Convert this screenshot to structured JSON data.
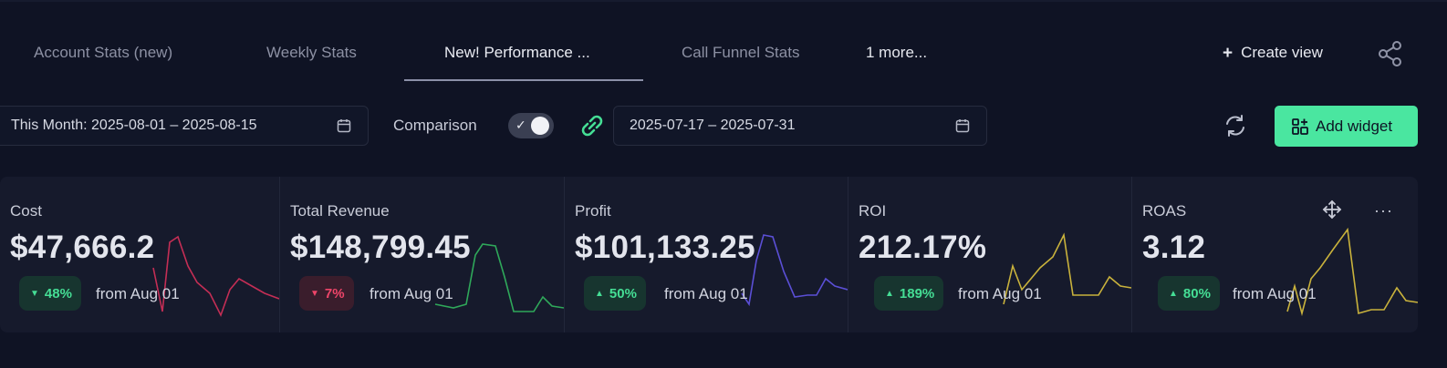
{
  "tabs": [
    {
      "label": "Account Stats (new)",
      "active": false
    },
    {
      "label": "Weekly Stats",
      "active": false
    },
    {
      "label": "New! Performance ...",
      "active": true
    },
    {
      "label": "Call Funnel Stats",
      "active": false
    }
  ],
  "more_tabs": "1 more...",
  "toolbar": {
    "create_view_label": "Create view",
    "create_view_icon": "plus-icon",
    "share_icon": "share-icon"
  },
  "filters": {
    "date_range": "This Month: 2025-08-01 – 2025-08-15",
    "comparison_label": "Comparison",
    "comparison_enabled": true,
    "comparison_range": "2025-07-17 – 2025-07-31",
    "add_widget_label": "Add widget"
  },
  "colors": {
    "accent": "#4ae6a0",
    "background": "#0f1324",
    "card_background": "#161a2c",
    "up": "#45de95",
    "down": "#ef4569"
  },
  "metrics": [
    {
      "label": "Cost",
      "value": "$47,666.2",
      "change": "48%",
      "direction": "down",
      "badge_tone": "up",
      "comparison": "from Aug 01",
      "spark_color": "#c42e55"
    },
    {
      "label": "Total Revenue",
      "value": "$148,799.45",
      "change": "7%",
      "direction": "down",
      "badge_tone": "down",
      "comparison": "from Aug 01",
      "spark_color": "#2fa85a"
    },
    {
      "label": "Profit",
      "value": "$101,133.25",
      "change": "50%",
      "direction": "up",
      "badge_tone": "up",
      "comparison": "from Aug 01",
      "spark_color": "#5b4fd6"
    },
    {
      "label": "ROI",
      "value": "212.17%",
      "change": "189%",
      "direction": "up",
      "badge_tone": "up",
      "comparison": "from Aug 01",
      "spark_color": "#c9b23c"
    },
    {
      "label": "ROAS",
      "value": "3.12",
      "change": "80%",
      "direction": "up",
      "badge_tone": "up",
      "comparison": "from Aug 01",
      "spark_color": "#c9b23c"
    }
  ]
}
